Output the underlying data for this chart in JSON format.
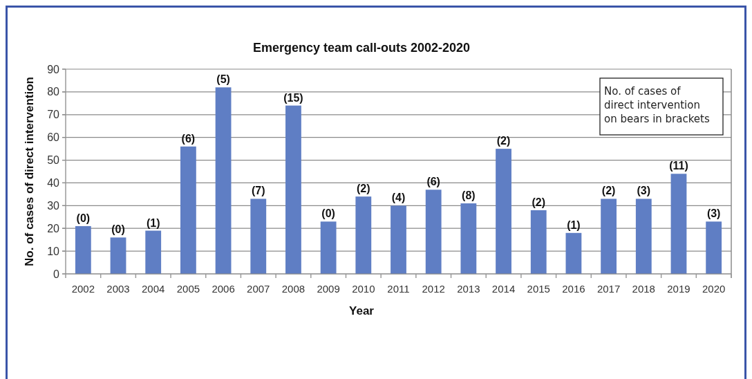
{
  "chart_data": {
    "type": "bar",
    "title": "Emergency team call-outs 2002-2020",
    "xlabel": "Year",
    "ylabel": "No. of cases of direct intervention",
    "categories": [
      "2002",
      "2003",
      "2004",
      "2005",
      "2006",
      "2007",
      "2008",
      "2009",
      "2010",
      "2011",
      "2012",
      "2013",
      "2014",
      "2015",
      "2016",
      "2017",
      "2018",
      "2019",
      "2020"
    ],
    "values": [
      21,
      16,
      19,
      56,
      82,
      33,
      74,
      23,
      34,
      30,
      37,
      31,
      55,
      28,
      18,
      33,
      33,
      44,
      23
    ],
    "color": "#5f7ec4",
    "ylim": [
      0,
      90
    ],
    "yticks": [
      0,
      10,
      20,
      30,
      40,
      50,
      60,
      70,
      80,
      90
    ],
    "grid": "y",
    "annotations": [
      "No. of cases of direct intervention on bears in brackets",
      {
        "text": "(0)",
        "x": "2002",
        "y": 21
      },
      {
        "text": "(0)",
        "x": "2003",
        "y": 16
      },
      {
        "text": "(1)",
        "x": "2004",
        "y": 19
      },
      {
        "text": "(6)",
        "x": "2005",
        "y": 56
      },
      {
        "text": "(5)",
        "x": "2006",
        "y": 82
      },
      {
        "text": "(7)",
        "x": "2007",
        "y": 33
      },
      {
        "text": "(15)",
        "x": "2008",
        "y": 74
      },
      {
        "text": "(0)",
        "x": "2009",
        "y": 23
      },
      {
        "text": "(2)",
        "x": "2010",
        "y": 34
      },
      {
        "text": "(4)",
        "x": "2011",
        "y": 30
      },
      {
        "text": "(6)",
        "x": "2012",
        "y": 37
      },
      {
        "text": "(8)",
        "x": "2013",
        "y": 31
      },
      {
        "text": "(2)",
        "x": "2014",
        "y": 55
      },
      {
        "text": "(2)",
        "x": "2015",
        "y": 28
      },
      {
        "text": "(1)",
        "x": "2016",
        "y": 18
      },
      {
        "text": "(2)",
        "x": "2017",
        "y": 33
      },
      {
        "text": "(3)",
        "x": "2018",
        "y": 33
      },
      {
        "text": "(11)",
        "x": "2019",
        "y": 44
      },
      {
        "text": "(3)",
        "x": "2020",
        "y": 23
      }
    ]
  }
}
